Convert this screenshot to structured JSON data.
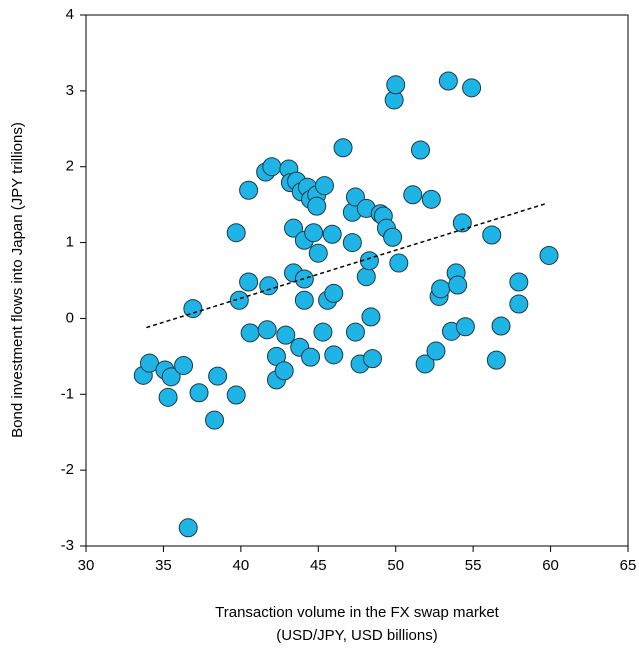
{
  "chart_data": {
    "type": "scatter",
    "xlabel": [
      "Transaction volume in the FX swap market",
      "(USD/JPY, USD billions)"
    ],
    "ylabel": "Bond investment flows into Japan (JPY trillions)",
    "xlim": [
      30,
      65
    ],
    "xticks": [
      30,
      35,
      40,
      45,
      50,
      55,
      60,
      65
    ],
    "ylim": [
      -3,
      4
    ],
    "yticks": [
      -3,
      -2,
      -1,
      0,
      1,
      2,
      3,
      4
    ],
    "grid": false,
    "color": "#1fb4e6",
    "x": [
      33.7,
      34.1,
      35.1,
      35.5,
      35.3,
      36.3,
      36.9,
      36.6,
      37.3,
      38.5,
      38.3,
      39.7,
      39.7,
      39.9,
      40.5,
      40.5,
      40.6,
      41.6,
      42.0,
      41.8,
      41.7,
      42.3,
      42.3,
      42.9,
      42.8,
      43.1,
      43.2,
      43.6,
      43.4,
      43.4,
      43.8,
      43.9,
      44.1,
      44.1,
      44.1,
      44.3,
      44.5,
      44.5,
      44.7,
      44.9,
      44.9,
      45.0,
      45.3,
      45.4,
      45.6,
      45.9,
      46.0,
      46.0,
      46.6,
      47.2,
      47.2,
      47.4,
      47.4,
      47.7,
      48.1,
      48.1,
      48.4,
      48.5,
      48.3,
      49.0,
      49.2,
      49.4,
      49.8,
      49.9,
      50.0,
      50.2,
      51.1,
      51.6,
      51.9,
      52.3,
      52.6,
      52.8,
      52.9,
      53.4,
      53.6,
      53.9,
      54.0,
      54.3,
      54.5,
      54.9,
      56.2,
      56.5,
      56.8,
      57.95,
      57.95,
      59.9
    ],
    "values": [
      -0.75,
      -0.59,
      -0.68,
      -0.77,
      -1.04,
      -0.62,
      0.13,
      -2.76,
      -0.98,
      -0.76,
      -1.34,
      -1.01,
      1.13,
      0.24,
      1.69,
      0.48,
      -0.19,
      1.93,
      2.0,
      0.43,
      -0.15,
      -0.5,
      -0.81,
      -0.22,
      -0.69,
      1.97,
      1.79,
      1.81,
      0.6,
      1.19,
      -0.38,
      1.67,
      1.03,
      0.52,
      0.24,
      1.73,
      -0.51,
      1.57,
      1.13,
      1.63,
      1.48,
      0.86,
      -0.18,
      1.75,
      0.24,
      1.11,
      0.33,
      -0.48,
      2.25,
      1.0,
      1.4,
      1.6,
      -0.18,
      -0.6,
      1.45,
      0.55,
      0.02,
      -0.53,
      0.76,
      1.38,
      1.35,
      1.19,
      1.07,
      2.88,
      3.08,
      0.73,
      1.63,
      2.22,
      -0.6,
      1.57,
      -0.43,
      0.29,
      0.39,
      3.13,
      -0.17,
      0.6,
      0.44,
      1.26,
      -0.11,
      3.04,
      1.1,
      -0.55,
      -0.1,
      0.48,
      0.19,
      0.83
    ],
    "trendline": {
      "x": [
        33.9,
        59.8
      ],
      "values": [
        -0.12,
        1.52
      ]
    }
  }
}
